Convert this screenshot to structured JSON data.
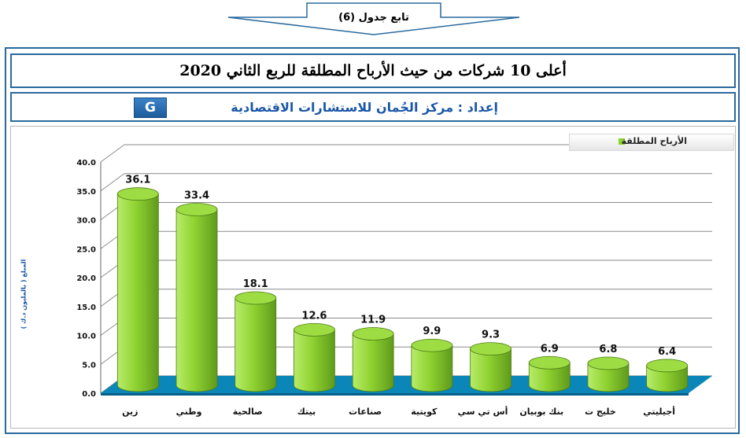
{
  "header": {
    "arrow_label": "تابع جدول (6)"
  },
  "title": "أعلى 10 شركات من حيث الأرباح المطلقة للربع الثاني 2020",
  "prepared_by": "إعداد : مركز الجُمان للاستشارات الاقتصادية",
  "logo_mark": "G",
  "colors": {
    "frame": "#2a6a9e",
    "bar_fill": "#8fd230",
    "floor": "#0a87b8",
    "text_blue": "#1a56a8"
  },
  "chart_data": {
    "type": "bar",
    "categories": [
      "زين",
      "وطني",
      "صالحية",
      "بيتك",
      "صناعات",
      "كويتية",
      "أس تي سي",
      "بنك بوبيان",
      "خليج ت",
      "أجيليتي"
    ],
    "series": [
      {
        "name": "الأرباح المطلقة",
        "values": [
          36.1,
          33.4,
          18.1,
          12.6,
          11.9,
          9.9,
          9.3,
          6.9,
          6.8,
          6.4
        ]
      }
    ],
    "data_labels": [
      "36.1",
      "33.4",
      "18.1",
      "12.6",
      "11.9",
      "9.9",
      "9.3",
      "6.9",
      "6.8",
      "6.4"
    ],
    "ytick_labels": [
      "0.0",
      "5.0",
      "10.0",
      "15.0",
      "20.0",
      "25.0",
      "30.0",
      "35.0",
      "40.0"
    ],
    "yticks": [
      0,
      5,
      10,
      15,
      20,
      25,
      30,
      35,
      40
    ],
    "ylim": [
      0,
      40
    ],
    "ylabel": "المبلغ ( بالمليون د.ك )",
    "legend_position": "top-right",
    "grid": true,
    "bar_style": "3d-cylinder"
  }
}
